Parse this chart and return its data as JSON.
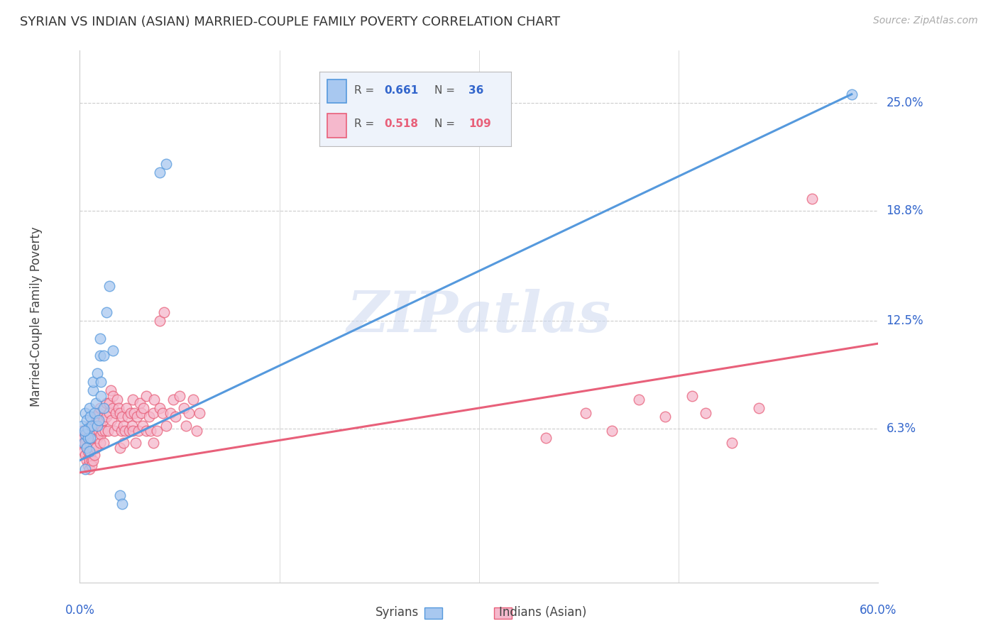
{
  "title": "SYRIAN VS INDIAN (ASIAN) MARRIED-COUPLE FAMILY POVERTY CORRELATION CHART",
  "source": "Source: ZipAtlas.com",
  "ylabel": "Married-Couple Family Poverty",
  "ytick_labels": [
    "25.0%",
    "18.8%",
    "12.5%",
    "6.3%"
  ],
  "ytick_values": [
    0.25,
    0.188,
    0.125,
    0.063
  ],
  "xlim": [
    0.0,
    0.6
  ],
  "ylim": [
    -0.025,
    0.28
  ],
  "syrian_color": "#a8c8f0",
  "indian_color": "#f5b8cc",
  "syrian_line_color": "#5599dd",
  "indian_line_color": "#e8607a",
  "watermark": "ZIPatlas",
  "syrian_R": 0.661,
  "syrian_N": 36,
  "indian_R": 0.518,
  "indian_N": 109,
  "syrian_line": [
    [
      0.0,
      0.045
    ],
    [
      0.58,
      0.255
    ]
  ],
  "indian_line": [
    [
      0.0,
      0.038
    ],
    [
      0.6,
      0.112
    ]
  ],
  "syrian_scatter": [
    [
      0.002,
      0.065
    ],
    [
      0.003,
      0.055
    ],
    [
      0.004,
      0.072
    ],
    [
      0.004,
      0.06
    ],
    [
      0.005,
      0.068
    ],
    [
      0.005,
      0.052
    ],
    [
      0.006,
      0.058
    ],
    [
      0.006,
      0.063
    ],
    [
      0.007,
      0.075
    ],
    [
      0.007,
      0.05
    ],
    [
      0.008,
      0.058
    ],
    [
      0.008,
      0.07
    ],
    [
      0.009,
      0.065
    ],
    [
      0.01,
      0.085
    ],
    [
      0.01,
      0.09
    ],
    [
      0.011,
      0.072
    ],
    [
      0.012,
      0.078
    ],
    [
      0.013,
      0.095
    ],
    [
      0.013,
      0.065
    ],
    [
      0.014,
      0.068
    ],
    [
      0.015,
      0.105
    ],
    [
      0.015,
      0.115
    ],
    [
      0.016,
      0.082
    ],
    [
      0.016,
      0.09
    ],
    [
      0.018,
      0.105
    ],
    [
      0.018,
      0.075
    ],
    [
      0.02,
      0.13
    ],
    [
      0.022,
      0.145
    ],
    [
      0.025,
      0.108
    ],
    [
      0.03,
      0.025
    ],
    [
      0.032,
      0.02
    ],
    [
      0.06,
      0.21
    ],
    [
      0.065,
      0.215
    ],
    [
      0.0035,
      0.062
    ],
    [
      0.004,
      0.04
    ],
    [
      0.58,
      0.255
    ]
  ],
  "indian_scatter": [
    [
      0.002,
      0.058
    ],
    [
      0.002,
      0.055
    ],
    [
      0.002,
      0.062
    ],
    [
      0.003,
      0.05
    ],
    [
      0.003,
      0.058
    ],
    [
      0.004,
      0.048
    ],
    [
      0.004,
      0.055
    ],
    [
      0.005,
      0.045
    ],
    [
      0.005,
      0.052
    ],
    [
      0.005,
      0.062
    ],
    [
      0.006,
      0.042
    ],
    [
      0.006,
      0.05
    ],
    [
      0.006,
      0.058
    ],
    [
      0.007,
      0.045
    ],
    [
      0.007,
      0.055
    ],
    [
      0.007,
      0.04
    ],
    [
      0.008,
      0.048
    ],
    [
      0.008,
      0.055
    ],
    [
      0.008,
      0.065
    ],
    [
      0.009,
      0.045
    ],
    [
      0.009,
      0.052
    ],
    [
      0.009,
      0.042
    ],
    [
      0.01,
      0.052
    ],
    [
      0.01,
      0.045
    ],
    [
      0.01,
      0.062
    ],
    [
      0.011,
      0.065
    ],
    [
      0.011,
      0.048
    ],
    [
      0.012,
      0.07
    ],
    [
      0.012,
      0.052
    ],
    [
      0.013,
      0.07
    ],
    [
      0.013,
      0.058
    ],
    [
      0.014,
      0.072
    ],
    [
      0.014,
      0.062
    ],
    [
      0.015,
      0.075
    ],
    [
      0.015,
      0.055
    ],
    [
      0.016,
      0.065
    ],
    [
      0.016,
      0.06
    ],
    [
      0.017,
      0.062
    ],
    [
      0.018,
      0.068
    ],
    [
      0.018,
      0.055
    ],
    [
      0.019,
      0.062
    ],
    [
      0.02,
      0.07
    ],
    [
      0.02,
      0.078
    ],
    [
      0.021,
      0.062
    ],
    [
      0.022,
      0.078
    ],
    [
      0.022,
      0.072
    ],
    [
      0.023,
      0.085
    ],
    [
      0.024,
      0.068
    ],
    [
      0.025,
      0.082
    ],
    [
      0.025,
      0.075
    ],
    [
      0.026,
      0.062
    ],
    [
      0.027,
      0.072
    ],
    [
      0.028,
      0.08
    ],
    [
      0.028,
      0.065
    ],
    [
      0.029,
      0.075
    ],
    [
      0.03,
      0.072
    ],
    [
      0.03,
      0.052
    ],
    [
      0.031,
      0.062
    ],
    [
      0.032,
      0.07
    ],
    [
      0.033,
      0.055
    ],
    [
      0.033,
      0.065
    ],
    [
      0.034,
      0.062
    ],
    [
      0.035,
      0.075
    ],
    [
      0.036,
      0.07
    ],
    [
      0.037,
      0.062
    ],
    [
      0.038,
      0.072
    ],
    [
      0.039,
      0.065
    ],
    [
      0.04,
      0.08
    ],
    [
      0.04,
      0.062
    ],
    [
      0.041,
      0.072
    ],
    [
      0.042,
      0.055
    ],
    [
      0.043,
      0.07
    ],
    [
      0.044,
      0.062
    ],
    [
      0.045,
      0.078
    ],
    [
      0.046,
      0.072
    ],
    [
      0.047,
      0.065
    ],
    [
      0.048,
      0.075
    ],
    [
      0.05,
      0.062
    ],
    [
      0.05,
      0.082
    ],
    [
      0.052,
      0.07
    ],
    [
      0.053,
      0.062
    ],
    [
      0.055,
      0.072
    ],
    [
      0.055,
      0.055
    ],
    [
      0.056,
      0.08
    ],
    [
      0.058,
      0.062
    ],
    [
      0.06,
      0.075
    ],
    [
      0.06,
      0.125
    ],
    [
      0.062,
      0.072
    ],
    [
      0.063,
      0.13
    ],
    [
      0.065,
      0.065
    ],
    [
      0.068,
      0.072
    ],
    [
      0.07,
      0.08
    ],
    [
      0.072,
      0.07
    ],
    [
      0.075,
      0.082
    ],
    [
      0.078,
      0.075
    ],
    [
      0.08,
      0.065
    ],
    [
      0.082,
      0.072
    ],
    [
      0.085,
      0.08
    ],
    [
      0.088,
      0.062
    ],
    [
      0.09,
      0.072
    ],
    [
      0.35,
      0.058
    ],
    [
      0.38,
      0.072
    ],
    [
      0.4,
      0.062
    ],
    [
      0.42,
      0.08
    ],
    [
      0.44,
      0.07
    ],
    [
      0.46,
      0.082
    ],
    [
      0.47,
      0.072
    ],
    [
      0.49,
      0.055
    ],
    [
      0.51,
      0.075
    ],
    [
      0.55,
      0.195
    ]
  ]
}
